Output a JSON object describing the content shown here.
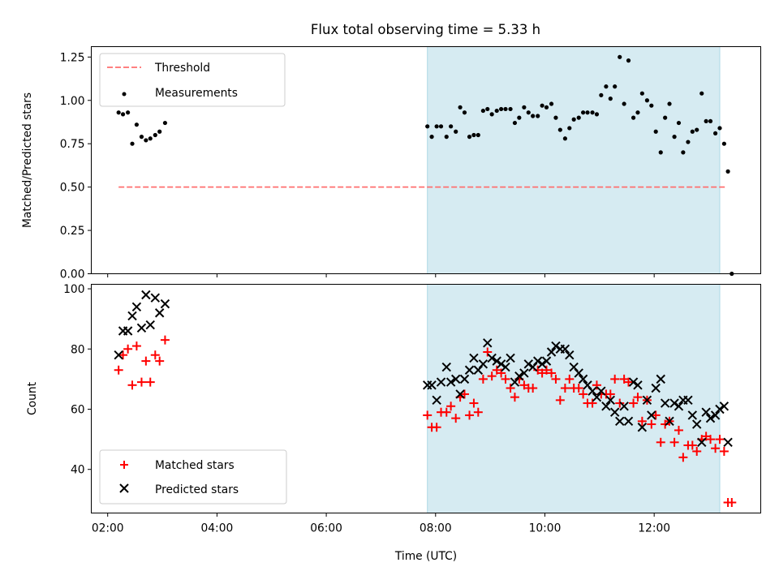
{
  "chart_data": [
    {
      "type": "scatter",
      "title": "Flux total observing time = 5.33 h",
      "xlabel": "",
      "ylabel": "Matched/Predicted stars",
      "x_unit": "hours UTC",
      "xlim": [
        1.7,
        13.95
      ],
      "ylim": [
        0,
        1.31
      ],
      "yticks": [
        "0.00",
        "0.25",
        "0.50",
        "0.75",
        "1.00",
        "1.25"
      ],
      "shaded_interval": {
        "start": 7.85,
        "end": 13.2,
        "color": "#add8e6"
      },
      "threshold": {
        "value": 0.5,
        "x_start": 2.2,
        "x_end": 13.3,
        "color": "#ff6f6f",
        "style": "dashed",
        "label": "Threshold"
      },
      "legend": {
        "position": "top-left",
        "entries": [
          "Threshold",
          "Measurements"
        ]
      },
      "series": [
        {
          "name": "Measurements",
          "color": "#000000",
          "marker": "dot",
          "points": [
            [
              2.2,
              0.93
            ],
            [
              2.28,
              0.92
            ],
            [
              2.37,
              0.93
            ],
            [
              2.45,
              0.75
            ],
            [
              2.53,
              0.86
            ],
            [
              2.62,
              0.79
            ],
            [
              2.7,
              0.77
            ],
            [
              2.78,
              0.78
            ],
            [
              2.87,
              0.8
            ],
            [
              2.95,
              0.82
            ],
            [
              3.05,
              0.87
            ],
            [
              7.85,
              0.85
            ],
            [
              7.93,
              0.79
            ],
            [
              8.02,
              0.85
            ],
            [
              8.1,
              0.85
            ],
            [
              8.2,
              0.79
            ],
            [
              8.28,
              0.85
            ],
            [
              8.37,
              0.82
            ],
            [
              8.45,
              0.96
            ],
            [
              8.53,
              0.93
            ],
            [
              8.62,
              0.79
            ],
            [
              8.7,
              0.8
            ],
            [
              8.78,
              0.8
            ],
            [
              8.87,
              0.94
            ],
            [
              8.95,
              0.95
            ],
            [
              9.03,
              0.92
            ],
            [
              9.12,
              0.94
            ],
            [
              9.2,
              0.95
            ],
            [
              9.28,
              0.95
            ],
            [
              9.37,
              0.95
            ],
            [
              9.45,
              0.87
            ],
            [
              9.53,
              0.9
            ],
            [
              9.62,
              0.96
            ],
            [
              9.7,
              0.93
            ],
            [
              9.78,
              0.91
            ],
            [
              9.87,
              0.91
            ],
            [
              9.95,
              0.97
            ],
            [
              10.03,
              0.96
            ],
            [
              10.12,
              0.98
            ],
            [
              10.2,
              0.9
            ],
            [
              10.28,
              0.83
            ],
            [
              10.37,
              0.78
            ],
            [
              10.45,
              0.84
            ],
            [
              10.53,
              0.89
            ],
            [
              10.62,
              0.9
            ],
            [
              10.7,
              0.93
            ],
            [
              10.78,
              0.93
            ],
            [
              10.87,
              0.93
            ],
            [
              10.95,
              0.92
            ],
            [
              11.03,
              1.03
            ],
            [
              11.12,
              1.08
            ],
            [
              11.2,
              1.01
            ],
            [
              11.28,
              1.08
            ],
            [
              11.37,
              1.25
            ],
            [
              11.45,
              0.98
            ],
            [
              11.53,
              1.23
            ],
            [
              11.62,
              0.9
            ],
            [
              11.7,
              0.93
            ],
            [
              11.78,
              1.04
            ],
            [
              11.87,
              1.0
            ],
            [
              11.95,
              0.97
            ],
            [
              12.03,
              0.82
            ],
            [
              12.12,
              0.7
            ],
            [
              12.2,
              0.9
            ],
            [
              12.28,
              0.98
            ],
            [
              12.37,
              0.79
            ],
            [
              12.45,
              0.87
            ],
            [
              12.53,
              0.7
            ],
            [
              12.62,
              0.76
            ],
            [
              12.7,
              0.82
            ],
            [
              12.78,
              0.83
            ],
            [
              12.87,
              1.04
            ],
            [
              12.95,
              0.88
            ],
            [
              13.03,
              0.88
            ],
            [
              13.12,
              0.81
            ],
            [
              13.2,
              0.84
            ],
            [
              13.28,
              0.75
            ],
            [
              13.35,
              0.59
            ],
            [
              13.42,
              0.0
            ]
          ]
        }
      ]
    },
    {
      "type": "scatter",
      "title": "",
      "xlabel": "Time (UTC)",
      "ylabel": "Count",
      "x_unit": "hours UTC",
      "xlim": [
        1.7,
        13.95
      ],
      "ylim": [
        25.5,
        101.5
      ],
      "yticks": [
        "40",
        "60",
        "80",
        "100"
      ],
      "xticks": [
        "02:00",
        "04:00",
        "06:00",
        "08:00",
        "10:00",
        "12:00"
      ],
      "xtick_values": [
        2,
        4,
        6,
        8,
        10,
        12
      ],
      "shaded_interval": {
        "start": 7.85,
        "end": 13.2,
        "color": "#add8e6"
      },
      "legend": {
        "position": "bottom-left",
        "entries": [
          "Matched stars",
          "Predicted stars"
        ]
      },
      "series": [
        {
          "name": "Matched stars",
          "color": "#ff0000",
          "marker": "plus",
          "points": [
            [
              2.2,
              73
            ],
            [
              2.28,
              78
            ],
            [
              2.37,
              80
            ],
            [
              2.45,
              68
            ],
            [
              2.53,
              81
            ],
            [
              2.62,
              69
            ],
            [
              2.7,
              76
            ],
            [
              2.78,
              69
            ],
            [
              2.87,
              78
            ],
            [
              2.95,
              76
            ],
            [
              3.05,
              83
            ],
            [
              7.85,
              58
            ],
            [
              7.93,
              54
            ],
            [
              8.02,
              54
            ],
            [
              8.1,
              59
            ],
            [
              8.2,
              59
            ],
            [
              8.28,
              61
            ],
            [
              8.37,
              57
            ],
            [
              8.45,
              64
            ],
            [
              8.53,
              65
            ],
            [
              8.62,
              58
            ],
            [
              8.7,
              62
            ],
            [
              8.78,
              59
            ],
            [
              8.87,
              70
            ],
            [
              8.95,
              79
            ],
            [
              9.03,
              71
            ],
            [
              9.12,
              73
            ],
            [
              9.2,
              72
            ],
            [
              9.28,
              70
            ],
            [
              9.37,
              67
            ],
            [
              9.45,
              64
            ],
            [
              9.53,
              70
            ],
            [
              9.62,
              68
            ],
            [
              9.7,
              67
            ],
            [
              9.78,
              67
            ],
            [
              9.87,
              73
            ],
            [
              9.95,
              72
            ],
            [
              10.03,
              73
            ],
            [
              10.12,
              72
            ],
            [
              10.2,
              70
            ],
            [
              10.28,
              63
            ],
            [
              10.37,
              67
            ],
            [
              10.45,
              70
            ],
            [
              10.53,
              67
            ],
            [
              10.62,
              67
            ],
            [
              10.7,
              65
            ],
            [
              10.78,
              62
            ],
            [
              10.87,
              62
            ],
            [
              10.95,
              68
            ],
            [
              11.03,
              65
            ],
            [
              11.12,
              65
            ],
            [
              11.2,
              65
            ],
            [
              11.28,
              70
            ],
            [
              11.37,
              62
            ],
            [
              11.45,
              70
            ],
            [
              11.53,
              69
            ],
            [
              11.62,
              62
            ],
            [
              11.7,
              64
            ],
            [
              11.78,
              56
            ],
            [
              11.87,
              63
            ],
            [
              11.95,
              55
            ],
            [
              12.03,
              58
            ],
            [
              12.12,
              49
            ],
            [
              12.2,
              55
            ],
            [
              12.28,
              56
            ],
            [
              12.37,
              49
            ],
            [
              12.45,
              53
            ],
            [
              12.53,
              44
            ],
            [
              12.62,
              48
            ],
            [
              12.7,
              48
            ],
            [
              12.78,
              46
            ],
            [
              12.87,
              50
            ],
            [
              12.95,
              51
            ],
            [
              13.03,
              50
            ],
            [
              13.12,
              47
            ],
            [
              13.2,
              50
            ],
            [
              13.28,
              46
            ],
            [
              13.35,
              29
            ],
            [
              13.42,
              29
            ]
          ]
        },
        {
          "name": "Predicted stars",
          "color": "#000000",
          "marker": "x",
          "points": [
            [
              2.2,
              78
            ],
            [
              2.28,
              86
            ],
            [
              2.37,
              86
            ],
            [
              2.45,
              91
            ],
            [
              2.53,
              94
            ],
            [
              2.62,
              87
            ],
            [
              2.7,
              98
            ],
            [
              2.78,
              88
            ],
            [
              2.87,
              97
            ],
            [
              2.95,
              92
            ],
            [
              3.05,
              95
            ],
            [
              7.85,
              68
            ],
            [
              7.93,
              68
            ],
            [
              8.02,
              63
            ],
            [
              8.1,
              69
            ],
            [
              8.2,
              74
            ],
            [
              8.28,
              69
            ],
            [
              8.37,
              70
            ],
            [
              8.45,
              65
            ],
            [
              8.53,
              70
            ],
            [
              8.62,
              73
            ],
            [
              8.7,
              77
            ],
            [
              8.78,
              73
            ],
            [
              8.87,
              75
            ],
            [
              8.95,
              82
            ],
            [
              9.03,
              77
            ],
            [
              9.12,
              76
            ],
            [
              9.2,
              75
            ],
            [
              9.28,
              74
            ],
            [
              9.37,
              77
            ],
            [
              9.45,
              69
            ],
            [
              9.53,
              71
            ],
            [
              9.62,
              72
            ],
            [
              9.7,
              75
            ],
            [
              9.78,
              74
            ],
            [
              9.87,
              76
            ],
            [
              9.95,
              75
            ],
            [
              10.03,
              76
            ],
            [
              10.12,
              79
            ],
            [
              10.2,
              81
            ],
            [
              10.28,
              80
            ],
            [
              10.37,
              80
            ],
            [
              10.45,
              78
            ],
            [
              10.53,
              74
            ],
            [
              10.62,
              72
            ],
            [
              10.7,
              70
            ],
            [
              10.78,
              68
            ],
            [
              10.87,
              66
            ],
            [
              10.95,
              64
            ],
            [
              11.03,
              66
            ],
            [
              11.12,
              61
            ],
            [
              11.2,
              63
            ],
            [
              11.28,
              59
            ],
            [
              11.37,
              56
            ],
            [
              11.45,
              61
            ],
            [
              11.53,
              56
            ],
            [
              11.62,
              69
            ],
            [
              11.7,
              68
            ],
            [
              11.78,
              54
            ],
            [
              11.87,
              63
            ],
            [
              11.95,
              58
            ],
            [
              12.03,
              67
            ],
            [
              12.12,
              70
            ],
            [
              12.2,
              62
            ],
            [
              12.28,
              56
            ],
            [
              12.37,
              62
            ],
            [
              12.45,
              61
            ],
            [
              12.53,
              63
            ],
            [
              12.62,
              63
            ],
            [
              12.7,
              58
            ],
            [
              12.78,
              55
            ],
            [
              12.87,
              49
            ],
            [
              12.95,
              59
            ],
            [
              13.03,
              57
            ],
            [
              13.12,
              58
            ],
            [
              13.2,
              60
            ],
            [
              13.28,
              61
            ],
            [
              13.35,
              49
            ]
          ]
        }
      ]
    }
  ]
}
